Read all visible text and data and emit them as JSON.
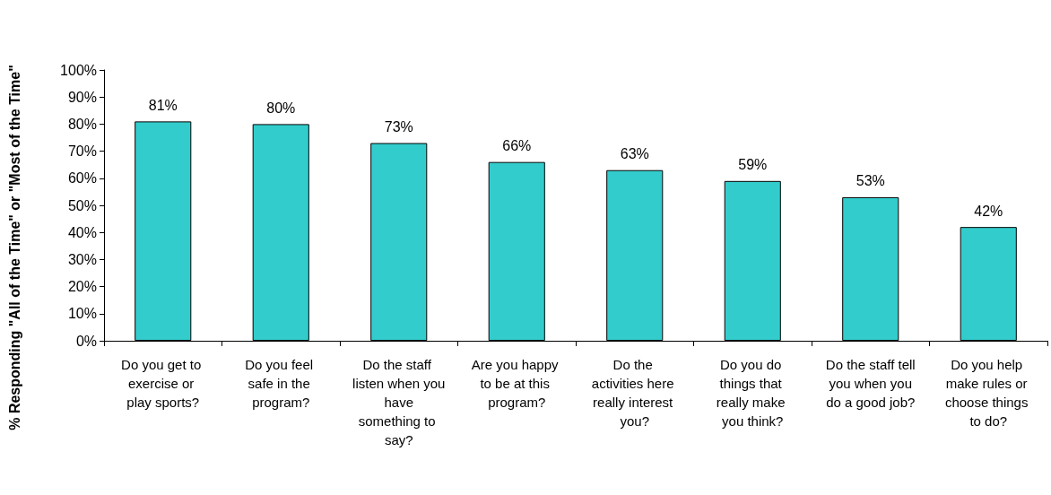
{
  "chart_data": {
    "type": "bar",
    "ylabel": "% Responding \"All of the Time\" or \"Most of the Time\"",
    "categories": [
      "Do you get to exercise or play sports?",
      "Do you feel safe in the program?",
      "Do the staff listen when you have something to say?",
      "Are you happy to be at this program?",
      "Do the activities here really interest you?",
      "Do you do things that really make you think?",
      "Do the staff tell you when you do a good job?",
      "Do you help make rules or choose things to do?"
    ],
    "values": [
      81,
      80,
      73,
      66,
      63,
      59,
      53,
      42
    ],
    "value_labels": [
      "81%",
      "80%",
      "73%",
      "66%",
      "63%",
      "59%",
      "53%",
      "42%"
    ],
    "color": "#33cccc",
    "ylim": [
      0,
      100
    ],
    "yticks": [
      {
        "value": 0,
        "label": "0%"
      },
      {
        "value": 10,
        "label": "10%"
      },
      {
        "value": 20,
        "label": "20%"
      },
      {
        "value": 30,
        "label": "30%"
      },
      {
        "value": 40,
        "label": "40%"
      },
      {
        "value": 50,
        "label": "50%"
      },
      {
        "value": 60,
        "label": "60%"
      },
      {
        "value": 70,
        "label": "70%"
      },
      {
        "value": 80,
        "label": "80%"
      },
      {
        "value": 90,
        "label": "90%"
      },
      {
        "value": 100,
        "label": "100%"
      }
    ],
    "grid": false
  }
}
